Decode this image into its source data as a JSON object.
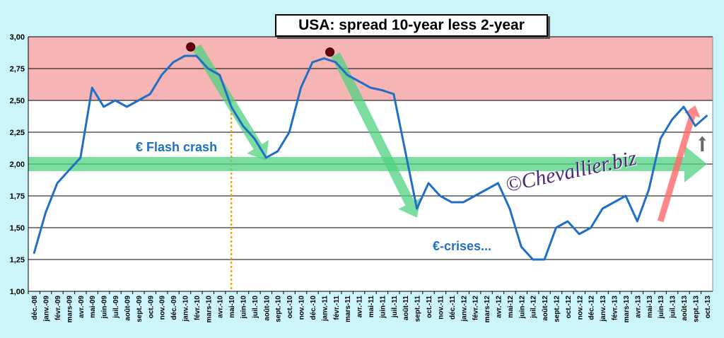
{
  "chart_data": {
    "type": "line",
    "title": "USA: spread 10-year less 2-year",
    "ylim": [
      1.0,
      3.0
    ],
    "y_ticks": [
      "1,00",
      "1,25",
      "1,50",
      "1,75",
      "2,00",
      "2,25",
      "2,50",
      "2,75",
      "3,00"
    ],
    "categories": [
      "déc.-08",
      "janv.-09",
      "févr.-09",
      "mars-09",
      "avr.-09",
      "mai-09",
      "juin-09",
      "juil.-09",
      "août-09",
      "sept.-09",
      "oct.-09",
      "nov.-09",
      "déc.-09",
      "janv.-10",
      "févr.-10",
      "mars-10",
      "avr.-10",
      "mai-10",
      "juin-10",
      "juil.-10",
      "août-10",
      "sept.-10",
      "oct.-10",
      "nov.-10",
      "déc.-10",
      "janv.-11",
      "févr.-11",
      "mars-11",
      "avr.-11",
      "mai-11",
      "juin-11",
      "juil.-11",
      "août-11",
      "sept.-11",
      "oct.-11",
      "nov.-11",
      "déc.-11",
      "janv.-12",
      "févr.-12",
      "mars-12",
      "avr.-12",
      "mai-12",
      "juin-12",
      "juil.-12",
      "août-12",
      "sept.-12",
      "oct.-12",
      "nov.-12",
      "déc.-12",
      "janv.-13",
      "févr.-13",
      "mars-13",
      "avr.-13",
      "mai-13",
      "juin-13",
      "juil.-13",
      "août-13",
      "sept.-13",
      "oct.-13"
    ],
    "series": [
      {
        "color": "#1f6fc7",
        "values": [
          1.3,
          1.62,
          1.85,
          1.95,
          2.05,
          2.6,
          2.45,
          2.5,
          2.45,
          2.5,
          2.55,
          2.7,
          2.8,
          2.85,
          2.85,
          2.75,
          2.7,
          2.45,
          2.3,
          2.2,
          2.05,
          2.1,
          2.25,
          2.6,
          2.8,
          2.83,
          2.8,
          2.7,
          2.65,
          2.6,
          2.58,
          2.55,
          2.1,
          1.65,
          1.85,
          1.75,
          1.7,
          1.7,
          1.75,
          1.8,
          1.85,
          1.65,
          1.35,
          1.25,
          1.25,
          1.5,
          1.55,
          1.45,
          1.5,
          1.65,
          1.7,
          1.75,
          1.55,
          1.8,
          2.2,
          2.35,
          2.45,
          2.3,
          2.38
        ]
      }
    ],
    "bands": [
      {
        "from": 2.5,
        "to": 3.0,
        "color": "#f7b4b4"
      }
    ],
    "grid": true,
    "legend": "none",
    "annotations": [
      "€ Flash crash",
      "€-crises..."
    ],
    "watermark": "©Chevallier.biz"
  }
}
